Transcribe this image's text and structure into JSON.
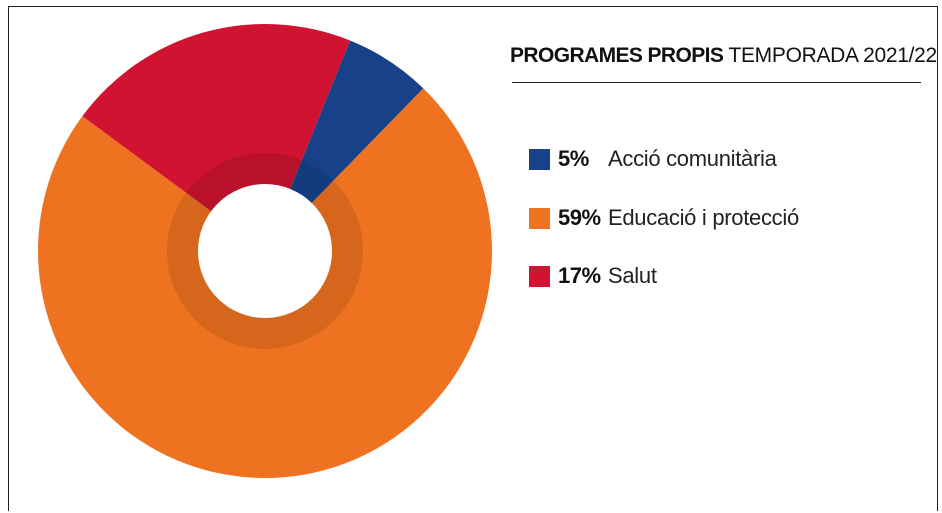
{
  "chart_data": {
    "type": "pie",
    "title_bold": "PROGRAMES PROPIS",
    "title_rest": "TEMPORADA 2021/22",
    "legend_position": "right",
    "categories": [
      "Acció comunitària",
      "Educació i protecció",
      "Salut"
    ],
    "values": [
      5,
      59,
      17
    ],
    "value_labels": [
      "5%",
      "59%",
      "17%"
    ],
    "colors": [
      "#17428a",
      "#ee7220",
      "#cf1330"
    ],
    "donut": true
  }
}
